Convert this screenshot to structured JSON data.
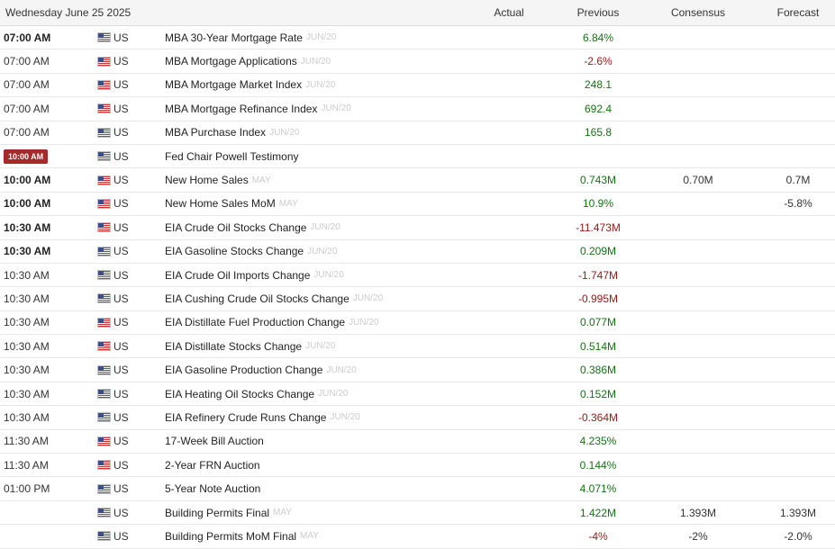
{
  "header": {
    "date": "Wednesday June 25 2025",
    "columns": {
      "actual": "Actual",
      "previous": "Previous",
      "consensus": "Consensus",
      "forecast": "Forecast"
    }
  },
  "colors": {
    "positive": "#137313",
    "negative": "#9c1616",
    "highlight_time_badge": "#a52a2a"
  },
  "rows": [
    {
      "time": "07:00 AM",
      "time_style": "bold",
      "flag": "us-flag-icon",
      "country": "US",
      "event": "MBA 30-Year Mortgage Rate",
      "period": "JUN/20",
      "actual": "",
      "previous": "6.84%",
      "previous_sign": "pos",
      "consensus": "",
      "forecast": ""
    },
    {
      "time": "07:00 AM",
      "time_style": "normal",
      "flag": "us-flag-icon",
      "country": "US",
      "event": "MBA Mortgage Applications",
      "period": "JUN/20",
      "actual": "",
      "previous": "-2.6%",
      "previous_sign": "neg",
      "consensus": "",
      "forecast": ""
    },
    {
      "time": "07:00 AM",
      "time_style": "normal",
      "flag": "us-flag-icon",
      "country": "US",
      "event": "MBA Mortgage Market Index",
      "period": "JUN/20",
      "actual": "",
      "previous": "248.1",
      "previous_sign": "pos",
      "consensus": "",
      "forecast": ""
    },
    {
      "time": "07:00 AM",
      "time_style": "normal",
      "flag": "us-flag-icon",
      "country": "US",
      "event": "MBA Mortgage Refinance Index",
      "period": "JUN/20",
      "actual": "",
      "previous": "692.4",
      "previous_sign": "pos",
      "consensus": "",
      "forecast": ""
    },
    {
      "time": "07:00 AM",
      "time_style": "normal",
      "flag": "us-flag-icon",
      "country": "US",
      "event": "MBA Purchase Index",
      "period": "JUN/20",
      "actual": "",
      "previous": "165.8",
      "previous_sign": "pos",
      "consensus": "",
      "forecast": ""
    },
    {
      "time": "10:00 AM",
      "time_style": "badge",
      "flag": "us-flag-icon",
      "country": "US",
      "event": "Fed Chair Powell Testimony",
      "period": "",
      "actual": "",
      "previous": "",
      "previous_sign": "neutral",
      "consensus": "",
      "forecast": ""
    },
    {
      "time": "10:00 AM",
      "time_style": "bold",
      "flag": "us-flag-icon",
      "country": "US",
      "event": "New Home Sales",
      "period": "MAY",
      "actual": "",
      "previous": "0.743M",
      "previous_sign": "pos",
      "consensus": "0.70M",
      "forecast": "0.7M"
    },
    {
      "time": "10:00 AM",
      "time_style": "bold",
      "flag": "us-flag-icon",
      "country": "US",
      "event": "New Home Sales MoM",
      "period": "MAY",
      "actual": "",
      "previous": "10.9%",
      "previous_sign": "pos",
      "consensus": "",
      "forecast": "-5.8%"
    },
    {
      "time": "10:30 AM",
      "time_style": "bold",
      "flag": "us-flag-icon",
      "country": "US",
      "event": "EIA Crude Oil Stocks Change",
      "period": "JUN/20",
      "actual": "",
      "previous": "-11.473M",
      "previous_sign": "neg",
      "consensus": "",
      "forecast": ""
    },
    {
      "time": "10:30 AM",
      "time_style": "bold",
      "flag": "us-flag-icon",
      "country": "US",
      "event": "EIA Gasoline Stocks Change",
      "period": "JUN/20",
      "actual": "",
      "previous": "0.209M",
      "previous_sign": "pos",
      "consensus": "",
      "forecast": ""
    },
    {
      "time": "10:30 AM",
      "time_style": "normal",
      "flag": "us-flag-icon",
      "country": "US",
      "event": "EIA Crude Oil Imports Change",
      "period": "JUN/20",
      "actual": "",
      "previous": "-1.747M",
      "previous_sign": "neg",
      "consensus": "",
      "forecast": ""
    },
    {
      "time": "10:30 AM",
      "time_style": "normal",
      "flag": "us-flag-icon",
      "country": "US",
      "event": "EIA Cushing Crude Oil Stocks Change",
      "period": "JUN/20",
      "actual": "",
      "previous": "-0.995M",
      "previous_sign": "neg",
      "consensus": "",
      "forecast": ""
    },
    {
      "time": "10:30 AM",
      "time_style": "normal",
      "flag": "us-flag-icon",
      "country": "US",
      "event": "EIA Distillate Fuel Production Change",
      "period": "JUN/20",
      "actual": "",
      "previous": "0.077M",
      "previous_sign": "pos",
      "consensus": "",
      "forecast": ""
    },
    {
      "time": "10:30 AM",
      "time_style": "normal",
      "flag": "us-flag-icon",
      "country": "US",
      "event": "EIA Distillate Stocks Change",
      "period": "JUN/20",
      "actual": "",
      "previous": "0.514M",
      "previous_sign": "pos",
      "consensus": "",
      "forecast": ""
    },
    {
      "time": "10:30 AM",
      "time_style": "normal",
      "flag": "us-flag-icon",
      "country": "US",
      "event": "EIA Gasoline Production Change",
      "period": "JUN/20",
      "actual": "",
      "previous": "0.386M",
      "previous_sign": "pos",
      "consensus": "",
      "forecast": ""
    },
    {
      "time": "10:30 AM",
      "time_style": "normal",
      "flag": "us-flag-icon",
      "country": "US",
      "event": "EIA Heating Oil Stocks Change",
      "period": "JUN/20",
      "actual": "",
      "previous": "0.152M",
      "previous_sign": "pos",
      "consensus": "",
      "forecast": ""
    },
    {
      "time": "10:30 AM",
      "time_style": "normal",
      "flag": "us-flag-icon",
      "country": "US",
      "event": "EIA Refinery Crude Runs Change",
      "period": "JUN/20",
      "actual": "",
      "previous": "-0.364M",
      "previous_sign": "neg",
      "consensus": "",
      "forecast": ""
    },
    {
      "time": "11:30 AM",
      "time_style": "normal",
      "flag": "us-flag-icon",
      "country": "US",
      "event": "17-Week Bill Auction",
      "period": "",
      "actual": "",
      "previous": "4.235%",
      "previous_sign": "pos",
      "consensus": "",
      "forecast": ""
    },
    {
      "time": "11:30 AM",
      "time_style": "normal",
      "flag": "us-flag-icon",
      "country": "US",
      "event": "2-Year FRN Auction",
      "period": "",
      "actual": "",
      "previous": "0.144%",
      "previous_sign": "pos",
      "consensus": "",
      "forecast": ""
    },
    {
      "time": "01:00 PM",
      "time_style": "normal",
      "flag": "us-flag-icon",
      "country": "US",
      "event": "5-Year Note Auction",
      "period": "",
      "actual": "",
      "previous": "4.071%",
      "previous_sign": "pos",
      "consensus": "",
      "forecast": ""
    },
    {
      "time": "",
      "time_style": "normal",
      "flag": "us-flag-icon",
      "country": "US",
      "event": "Building Permits Final",
      "period": "MAY",
      "actual": "",
      "previous": "1.422M",
      "previous_sign": "pos",
      "consensus": "1.393M",
      "forecast": "1.393M"
    },
    {
      "time": "",
      "time_style": "normal",
      "flag": "us-flag-icon",
      "country": "US",
      "event": "Building Permits MoM Final",
      "period": "MAY",
      "actual": "",
      "previous": "-4%",
      "previous_sign": "neg",
      "consensus": "-2%",
      "forecast": "-2.0%"
    }
  ]
}
